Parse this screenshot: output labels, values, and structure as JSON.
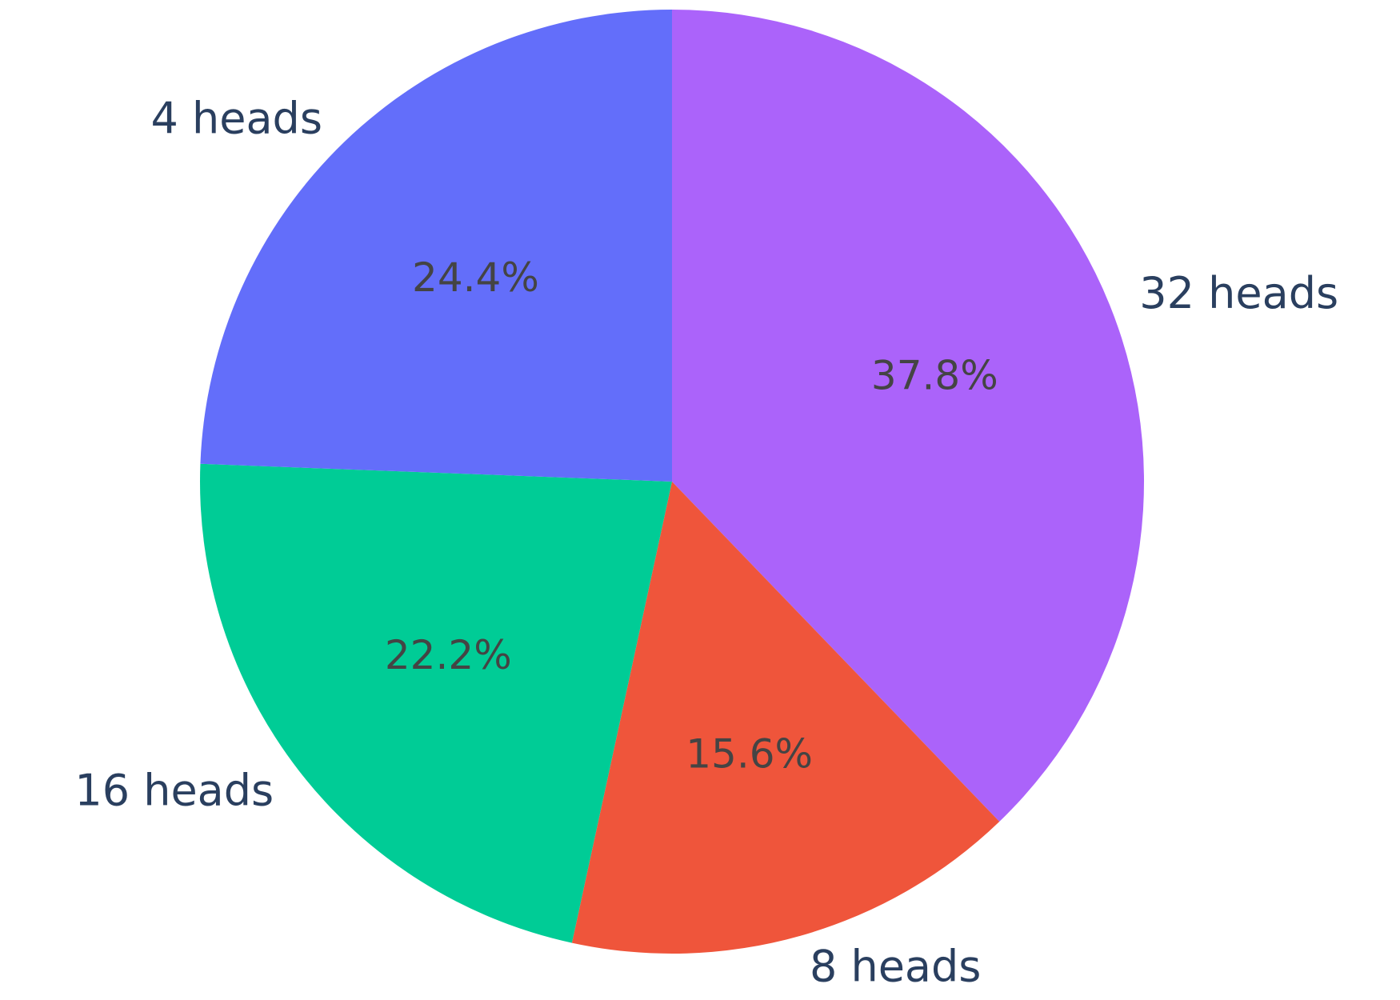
{
  "chart_data": {
    "type": "pie",
    "categories": [
      "32 heads",
      "8 heads",
      "16 heads",
      "4 heads"
    ],
    "values": [
      37.8,
      15.6,
      22.2,
      24.4
    ],
    "percent_labels": [
      "37.8%",
      "15.6%",
      "22.2%",
      "24.4%"
    ],
    "colors": [
      "#ab63fa",
      "#ef553b",
      "#00cc96",
      "#636efa"
    ],
    "start": "12 o'clock",
    "direction": "clockwise",
    "legend": "none",
    "title": ""
  }
}
